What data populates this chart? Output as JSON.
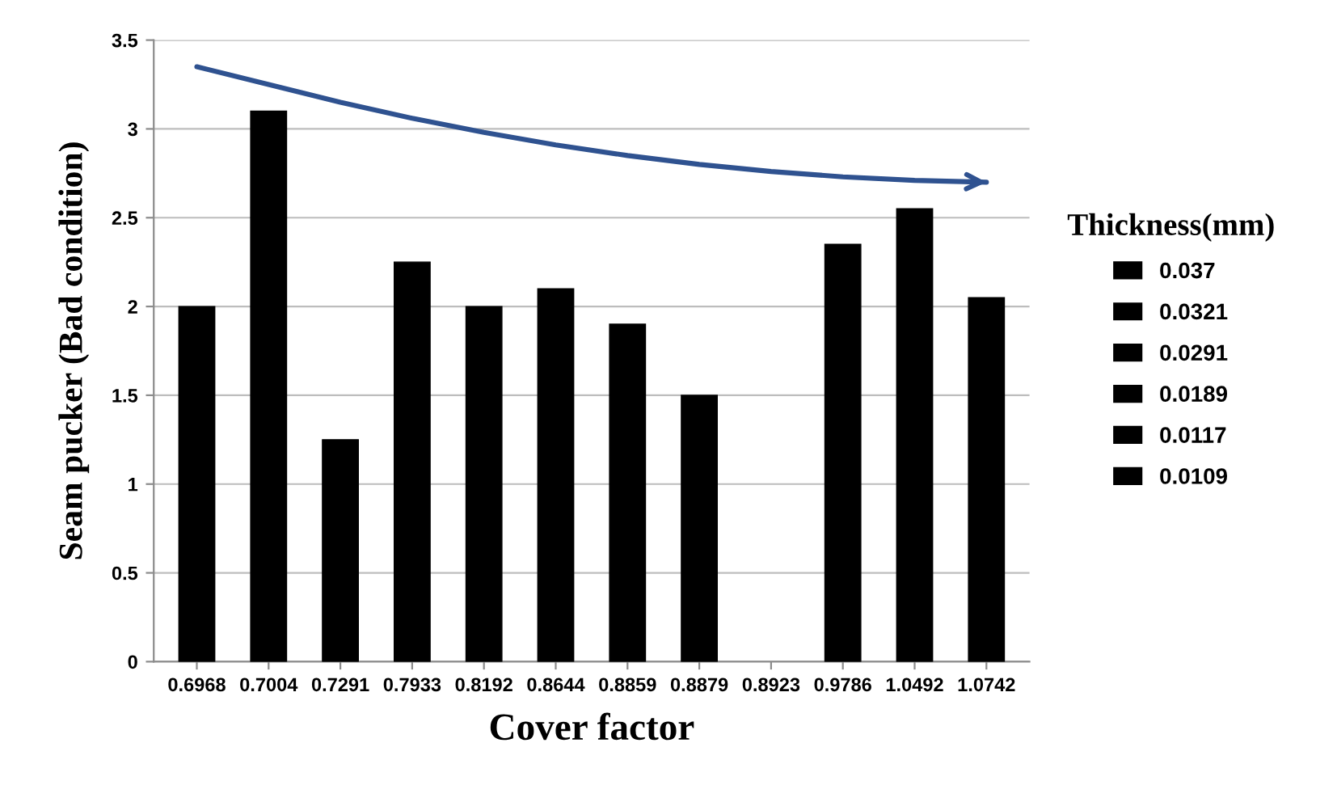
{
  "chart_data": {
    "type": "bar",
    "xlabel": "Cover factor",
    "ylabel": "Seam pucker (Bad condition)",
    "legend_title": "Thickness(mm)",
    "categories": [
      "0.6968",
      "0.7004",
      "0.7291",
      "0.7933",
      "0.8192",
      "0.8644",
      "0.8859",
      "0.8879",
      "0.8923",
      "0.9786",
      "1.0492",
      "1.0742"
    ],
    "series": [
      {
        "name": "0.037",
        "color": "#000000",
        "values": [
          null,
          null,
          null,
          2.25,
          null,
          2.1,
          null,
          1.5,
          null,
          null,
          null,
          null
        ]
      },
      {
        "name": "0.0321",
        "color": "#000000",
        "values": [
          2.0,
          null,
          null,
          null,
          null,
          null,
          null,
          null,
          null,
          null,
          null,
          2.05
        ]
      },
      {
        "name": "0.0291",
        "color": "#000000",
        "values": [
          null,
          null,
          null,
          null,
          null,
          null,
          1.9,
          null,
          null,
          2.35,
          null,
          null
        ]
      },
      {
        "name": "0.0189",
        "color": "#000000",
        "values": [
          null,
          null,
          null,
          null,
          null,
          null,
          null,
          null,
          null,
          null,
          2.55,
          null
        ]
      },
      {
        "name": "0.0117",
        "color": "#000000",
        "values": [
          null,
          null,
          1.25,
          null,
          2.0,
          null,
          null,
          null,
          null,
          null,
          null,
          null
        ]
      },
      {
        "name": "0.0109",
        "color": "#000000",
        "values": [
          null,
          3.1,
          null,
          null,
          null,
          null,
          null,
          null,
          null,
          null,
          null,
          null
        ]
      },
      {
        "type": "line",
        "color": "#2f5290",
        "values": [
          3.35,
          3.25,
          3.15,
          3.06,
          2.98,
          2.91,
          2.85,
          2.8,
          2.76,
          2.73,
          2.71,
          2.7
        ]
      }
    ],
    "ylim": [
      0,
      3.5
    ],
    "yticks": [
      0,
      0.5,
      1,
      1.5,
      2,
      2.5,
      3,
      3.5
    ],
    "grid": "y",
    "legend": "right"
  }
}
